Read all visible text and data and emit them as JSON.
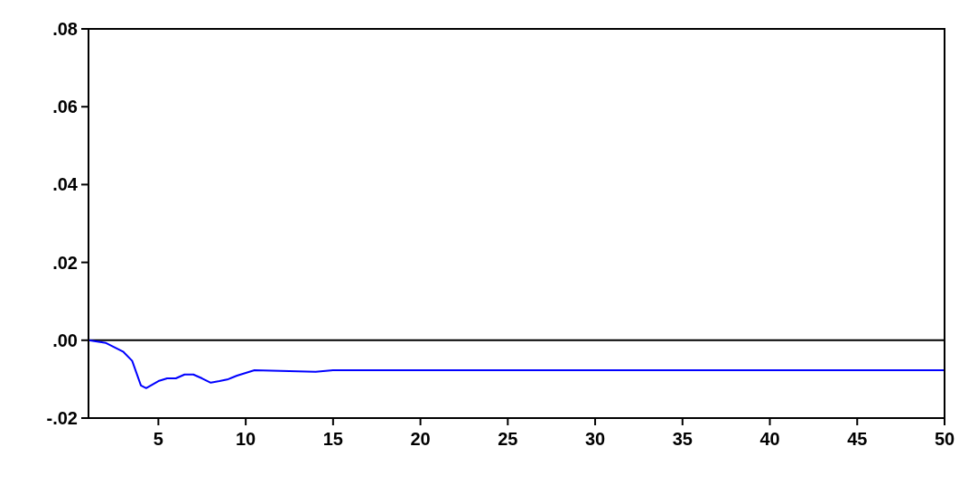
{
  "chart_data": {
    "type": "line",
    "x": [
      1,
      2,
      3,
      3.5,
      4,
      4.3,
      5,
      5.5,
      6,
      6.5,
      7,
      7.5,
      8,
      8.5,
      9,
      9.5,
      10,
      10.5,
      12,
      14,
      15,
      20,
      30,
      40,
      50
    ],
    "series": [
      {
        "color": "#0000ff",
        "values": [
          0,
          -0.0007,
          -0.003,
          -0.0053,
          -0.0116,
          -0.0123,
          -0.0105,
          -0.0098,
          -0.0098,
          -0.0088,
          -0.0088,
          -0.0098,
          -0.0109,
          -0.0105,
          -0.01,
          -0.0091,
          -0.0084,
          -0.0077,
          -0.0079,
          -0.0081,
          -0.0077,
          -0.0077,
          -0.0077,
          -0.0077,
          -0.0077
        ]
      }
    ],
    "xlim": [
      1,
      50
    ],
    "xticks": [
      5,
      10,
      15,
      20,
      25,
      30,
      35,
      40,
      45,
      50
    ],
    "ylim": [
      -0.02,
      0.08
    ],
    "yticks": [
      {
        "value": -0.02,
        "label": "-.02"
      },
      {
        "value": 0,
        "label": ".00"
      },
      {
        "value": 0.02,
        "label": ".02"
      },
      {
        "value": 0.04,
        "label": ".04"
      },
      {
        "value": 0.06,
        "label": ".06"
      },
      {
        "value": 0.08,
        "label": ".08"
      }
    ],
    "ref_lines": [
      {
        "axis": "y",
        "value": 0,
        "color": "#000000"
      }
    ],
    "grid": false
  }
}
